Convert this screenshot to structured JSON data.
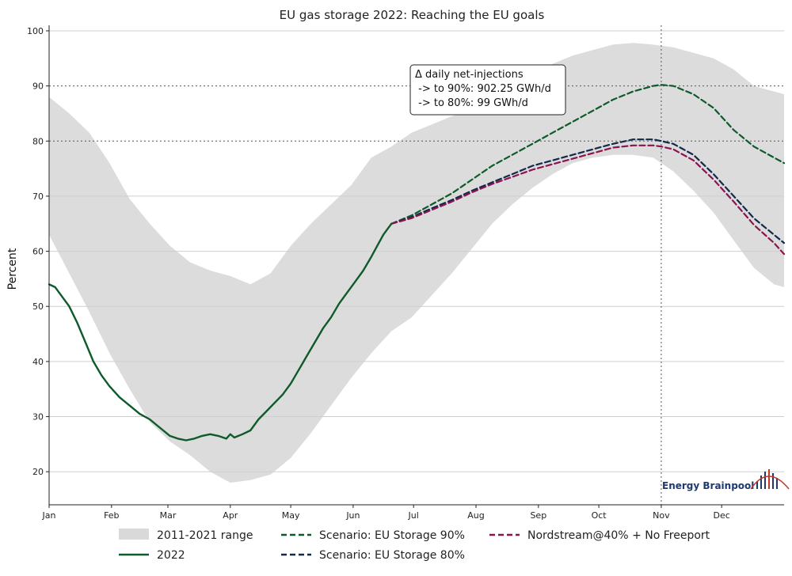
{
  "chart_data": {
    "type": "line",
    "title": "EU gas storage 2022: Reaching the EU goals",
    "ylabel": "Percent",
    "xlabel": "",
    "ylim": [
      14,
      101
    ],
    "xlim": [
      0,
      365
    ],
    "yticks": [
      20,
      30,
      40,
      50,
      60,
      70,
      80,
      90,
      100
    ],
    "xticks": [
      {
        "label": "Jan",
        "day": 0
      },
      {
        "label": "Feb",
        "day": 31
      },
      {
        "label": "Mar",
        "day": 59
      },
      {
        "label": "Apr",
        "day": 90
      },
      {
        "label": "May",
        "day": 120
      },
      {
        "label": "Jun",
        "day": 151
      },
      {
        "label": "Jul",
        "day": 181
      },
      {
        "label": "Aug",
        "day": 212
      },
      {
        "label": "Sep",
        "day": 243
      },
      {
        "label": "Oct",
        "day": 273
      },
      {
        "label": "Nov",
        "day": 304
      },
      {
        "label": "Dec",
        "day": 334
      }
    ],
    "hlines": [
      80,
      90
    ],
    "vline_day": 304,
    "range_band": {
      "name": "2011-2021 range",
      "color": "#dcdcdc",
      "x": [
        0,
        10,
        20,
        30,
        40,
        50,
        60,
        70,
        80,
        90,
        100,
        110,
        120,
        130,
        140,
        150,
        160,
        170,
        180,
        190,
        200,
        210,
        220,
        230,
        240,
        250,
        260,
        270,
        280,
        290,
        300,
        310,
        320,
        330,
        340,
        350,
        360,
        365
      ],
      "upper": [
        88,
        85,
        81.5,
        76,
        69.5,
        65,
        61,
        58,
        56.5,
        55.5,
        54,
        56,
        61,
        65,
        68.5,
        72,
        77,
        79,
        81.5,
        83,
        84.5,
        85.5,
        87,
        89.5,
        92,
        94,
        95.5,
        96.5,
        97.5,
        97.8,
        97.5,
        97,
        96,
        95,
        93,
        90,
        89,
        88.5
      ],
      "lower": [
        63,
        56,
        49,
        41.5,
        35,
        29,
        25.5,
        23,
        20,
        18,
        18.5,
        19.5,
        22.5,
        27,
        32,
        37,
        41.5,
        45.5,
        48,
        52,
        56,
        60.5,
        65,
        68.5,
        71.5,
        74,
        76,
        77,
        77.5,
        77.5,
        77,
        74.5,
        71,
        67,
        62,
        57,
        54,
        53.5
      ]
    },
    "series": [
      {
        "name": "2022",
        "color": "#0e5a2b",
        "style": "solid",
        "x": [
          0,
          3,
          7,
          10,
          14,
          18,
          22,
          26,
          30,
          35,
          40,
          45,
          50,
          55,
          60,
          64,
          68,
          72,
          76,
          80,
          84,
          88,
          90,
          92,
          94,
          96,
          100,
          104,
          108,
          112,
          116,
          120,
          124,
          128,
          132,
          136,
          140,
          144,
          148,
          152,
          156,
          160,
          163,
          166,
          168,
          170
        ],
        "y": [
          54,
          53.5,
          51.5,
          50,
          47,
          43.5,
          40,
          37.5,
          35.5,
          33.5,
          32,
          30.5,
          29.5,
          28,
          26.5,
          26,
          25.7,
          26,
          26.5,
          26.8,
          26.5,
          26,
          26.8,
          26.2,
          26.5,
          26.8,
          27.5,
          29.5,
          31,
          32.5,
          34,
          36,
          38.5,
          41,
          43.5,
          46,
          48,
          50.5,
          52.5,
          54.5,
          56.5,
          59,
          61,
          63,
          64,
          65
        ]
      },
      {
        "name": "Scenario: EU Storage 90%",
        "color": "#0e5a2b",
        "style": "dashed",
        "x": [
          170,
          180,
          190,
          200,
          210,
          220,
          230,
          240,
          250,
          260,
          270,
          280,
          290,
          300,
          304,
          310,
          320,
          330,
          340,
          350,
          360,
          365
        ],
        "y": [
          65,
          66.5,
          68.5,
          70.5,
          73,
          75.5,
          77.5,
          79.5,
          81.5,
          83.5,
          85.5,
          87.5,
          89,
          90,
          90.2,
          90,
          88.5,
          86,
          82,
          79,
          77,
          76
        ]
      },
      {
        "name": "Scenario: EU Storage 80%",
        "color": "#13294b",
        "style": "dashed",
        "x": [
          170,
          180,
          190,
          200,
          210,
          220,
          230,
          240,
          250,
          260,
          270,
          280,
          290,
          300,
          304,
          310,
          320,
          330,
          340,
          350,
          360,
          365
        ],
        "y": [
          65,
          66.2,
          67.8,
          69.3,
          71,
          72.5,
          74,
          75.5,
          76.5,
          77.5,
          78.5,
          79.5,
          80.3,
          80.3,
          80,
          79.5,
          77.5,
          74,
          70,
          66,
          63,
          61.5
        ]
      },
      {
        "name": "Nordstream@40% + No Freeport",
        "color": "#8b1450",
        "style": "dashed",
        "x": [
          170,
          180,
          190,
          200,
          210,
          220,
          230,
          240,
          250,
          260,
          270,
          280,
          290,
          300,
          304,
          310,
          320,
          330,
          340,
          350,
          360,
          365
        ],
        "y": [
          65,
          66,
          67.5,
          69,
          70.7,
          72.2,
          73.5,
          74.8,
          75.8,
          76.8,
          77.8,
          78.8,
          79.2,
          79.2,
          79,
          78.5,
          76.5,
          73,
          69,
          64.8,
          61.5,
          59.5
        ]
      }
    ],
    "annotation": {
      "lines": [
        "Δ daily net-injections",
        " -> to 90%: 902.25 GWh/d",
        " -> to 80%: 99 GWh/d"
      ]
    },
    "legend": {
      "position": "bottom",
      "items": [
        {
          "label": "2011-2021 range",
          "kind": "band",
          "color": "#d9d9d9"
        },
        {
          "label": "Scenario: EU Storage 90%",
          "kind": "dashed",
          "color": "#0e5a2b"
        },
        {
          "label": "Nordstream@40% + No Freeport",
          "kind": "dashed",
          "color": "#8b1450"
        },
        {
          "label": "2022",
          "kind": "solid",
          "color": "#0e5a2b"
        },
        {
          "label": "Scenario: EU Storage 80%",
          "kind": "dashed",
          "color": "#13294b"
        }
      ]
    },
    "grid": true
  },
  "brand": {
    "name": "Energy Brainpool",
    "text_color": "#1e3a6e",
    "accent_color": "#c0392b"
  }
}
